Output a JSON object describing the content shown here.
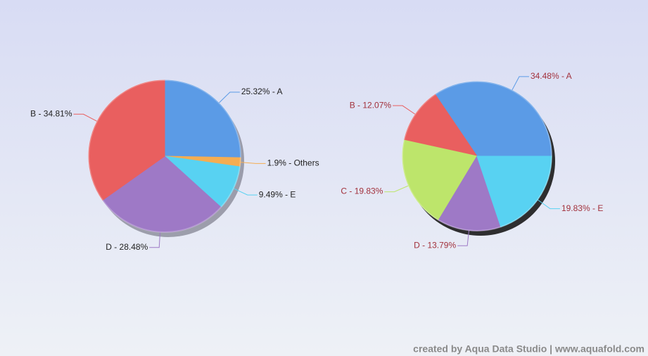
{
  "chart_data": [
    {
      "type": "pie",
      "values": [
        25.32,
        1.9,
        9.49,
        28.48,
        34.81
      ],
      "value_labels": [
        "25.32% - A",
        "1.9% - Others",
        "9.49% - E",
        "D - 28.48%",
        "B - 34.81%"
      ],
      "colors": [
        "#5b9be6",
        "#f5ad52",
        "#58d2f2",
        "#9e79c6",
        "#e95f5f"
      ],
      "label_color": "#222222"
    },
    {
      "type": "pie",
      "values": [
        34.48,
        12.07,
        19.83,
        13.79,
        19.83
      ],
      "value_labels": [
        "34.48% - A",
        "B - 12.07%",
        "C - 19.83%",
        "D - 13.79%",
        "19.83% - E"
      ],
      "colors": [
        "#5b9be6",
        "#e95f5f",
        "#bde56b",
        "#9e79c6",
        "#58d2f2"
      ],
      "label_color": "#a2313c"
    }
  ],
  "watermark": "created by Aqua Data Studio | www.aquafold.com"
}
